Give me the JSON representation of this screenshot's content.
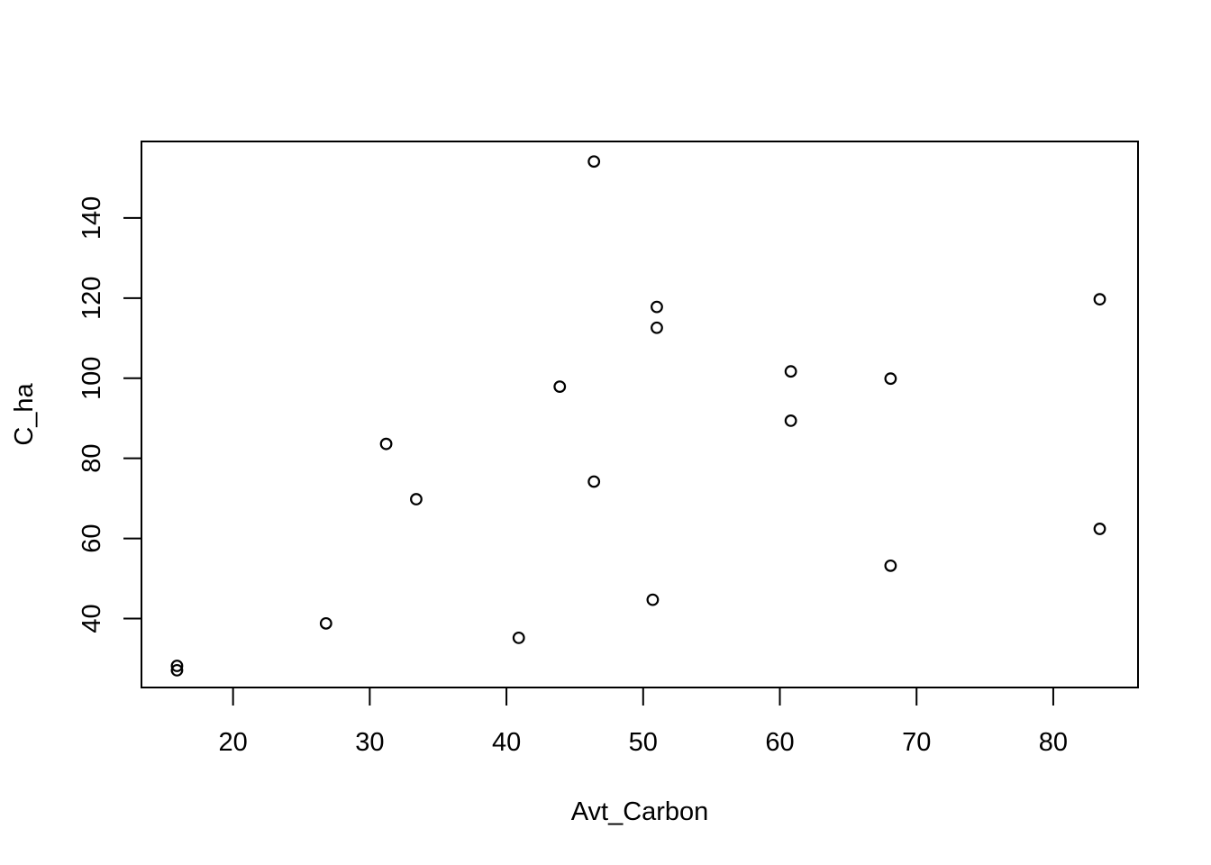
{
  "chart_data": {
    "type": "scatter",
    "title": "",
    "xlabel": "Avt_Carbon",
    "ylabel": "C_ha",
    "xlim": [
      13.3,
      86.2
    ],
    "ylim": [
      22.8,
      159.1
    ],
    "xticks": [
      20,
      30,
      40,
      50,
      60,
      70,
      80
    ],
    "yticks": [
      40,
      60,
      80,
      100,
      120,
      140
    ],
    "xtick_labels": [
      "20",
      "30",
      "40",
      "50",
      "60",
      "70",
      "80"
    ],
    "ytick_labels": [
      "40",
      "60",
      "80",
      "100",
      "120",
      "140"
    ],
    "grid": false,
    "marker": "open-circle",
    "points": [
      {
        "x": 15.9,
        "y": 28.2
      },
      {
        "x": 15.9,
        "y": 27.1
      },
      {
        "x": 26.8,
        "y": 38.8
      },
      {
        "x": 31.2,
        "y": 83.6
      },
      {
        "x": 33.4,
        "y": 69.8
      },
      {
        "x": 40.9,
        "y": 35.2
      },
      {
        "x": 43.9,
        "y": 97.9
      },
      {
        "x": 46.4,
        "y": 154.1
      },
      {
        "x": 46.4,
        "y": 74.2
      },
      {
        "x": 50.7,
        "y": 44.7
      },
      {
        "x": 51.0,
        "y": 117.8
      },
      {
        "x": 51.0,
        "y": 112.6
      },
      {
        "x": 60.8,
        "y": 101.7
      },
      {
        "x": 60.8,
        "y": 89.4
      },
      {
        "x": 68.1,
        "y": 99.9
      },
      {
        "x": 68.1,
        "y": 53.2
      },
      {
        "x": 83.4,
        "y": 119.7
      },
      {
        "x": 83.4,
        "y": 62.4
      }
    ]
  }
}
